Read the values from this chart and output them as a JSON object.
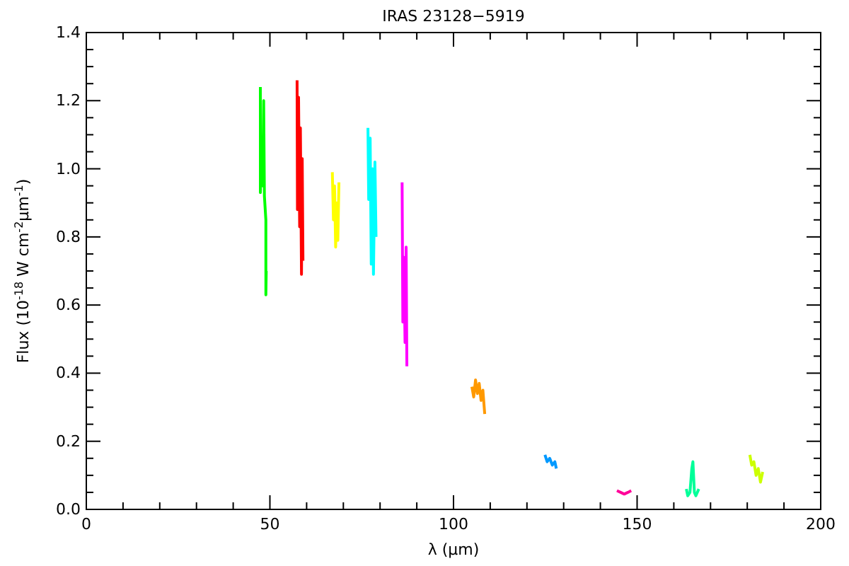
{
  "chart_data": {
    "type": "line",
    "title": "IRAS 23128−5919",
    "xlabel": "λ (μm)",
    "ylabel": "Flux (10$^{-18}$ W cm$^{-2}$μm$^{-1}$)",
    "xlim": [
      0,
      200
    ],
    "ylim": [
      0,
      1.4
    ],
    "xticks": [
      0,
      {
        "value": 10,
        "label": null
      },
      {
        "value": 20,
        "label": null
      },
      {
        "value": 30,
        "label": null
      },
      {
        "value": 40,
        "label": null
      },
      50,
      {
        "value": 60,
        "label": null
      },
      {
        "value": 70,
        "label": null
      },
      {
        "value": 80,
        "label": null
      },
      {
        "value": 90,
        "label": null
      },
      100,
      {
        "value": 110,
        "label": null
      },
      {
        "value": 120,
        "label": null
      },
      {
        "value": 130,
        "label": null
      },
      {
        "value": 140,
        "label": null
      },
      150,
      {
        "value": 160,
        "label": null
      },
      {
        "value": 170,
        "label": null
      },
      {
        "value": 180,
        "label": null
      },
      {
        "value": 190,
        "label": null
      },
      200
    ],
    "yticks": [
      {
        "value": 0,
        "label": "0.0"
      },
      {
        "value": 0.05,
        "label": null
      },
      {
        "value": 0.1,
        "label": null
      },
      {
        "value": 0.15,
        "label": null
      },
      0.2,
      {
        "value": 0.25,
        "label": null
      },
      {
        "value": 0.3,
        "label": null
      },
      {
        "value": 0.35,
        "label": null
      },
      0.4,
      {
        "value": 0.45,
        "label": null
      },
      {
        "value": 0.5,
        "label": null
      },
      {
        "value": 0.55,
        "label": null
      },
      0.6,
      {
        "value": 0.65,
        "label": null
      },
      {
        "value": 0.7,
        "label": null
      },
      {
        "value": 0.75,
        "label": null
      },
      0.8,
      {
        "value": 0.85,
        "label": null
      },
      {
        "value": 0.9,
        "label": null
      },
      {
        "value": 0.95,
        "label": null
      },
      {
        "value": 1,
        "label": "1.0"
      },
      {
        "value": 1.05,
        "label": null
      },
      {
        "value": 1.1,
        "label": null
      },
      {
        "value": 1.15,
        "label": null
      },
      1.2,
      {
        "value": 1.25,
        "label": null
      },
      {
        "value": 1.3,
        "label": null
      },
      {
        "value": 1.35,
        "label": null
      },
      1.4
    ],
    "grid": false,
    "marker": "none",
    "line_style": "solid",
    "series": [
      {
        "color": "#00ff00",
        "x": [
          47.4,
          47.4,
          47.6,
          48.0,
          48.3,
          48.5,
          48.9,
          48.9,
          49.0
        ],
        "values": [
          1.24,
          0.93,
          1.0,
          0.95,
          1.2,
          0.92,
          0.85,
          0.63,
          0.7
        ]
      },
      {
        "color": "#ff0000",
        "x": [
          57.4,
          57.5,
          57.8,
          58.1,
          58.3,
          58.6,
          58.8,
          59.0
        ],
        "values": [
          1.26,
          0.88,
          1.21,
          0.83,
          1.12,
          0.69,
          1.03,
          0.73
        ]
      },
      {
        "color": "#ffff00",
        "x": [
          67.0,
          67.3,
          67.6,
          67.9,
          68.2,
          68.5,
          68.8
        ],
        "values": [
          0.99,
          0.85,
          0.95,
          0.77,
          0.9,
          0.79,
          0.96
        ]
      },
      {
        "color": "#00ffff",
        "x": [
          76.7,
          76.9,
          77.3,
          77.6,
          77.9,
          78.2,
          78.6,
          78.9
        ],
        "values": [
          1.12,
          0.91,
          1.09,
          0.72,
          1.0,
          0.69,
          1.02,
          0.8
        ]
      },
      {
        "color": "#ff00ff",
        "x": [
          86.0,
          86.2,
          86.5,
          86.8,
          87.1,
          87.3
        ],
        "values": [
          0.96,
          0.55,
          0.74,
          0.49,
          0.77,
          0.42
        ]
      },
      {
        "color": "#ff9900",
        "x": [
          105.0,
          105.5,
          106,
          106.5,
          107,
          107.5,
          108,
          108.5
        ],
        "values": [
          0.36,
          0.33,
          0.38,
          0.34,
          0.37,
          0.32,
          0.35,
          0.28
        ]
      },
      {
        "color": "#0099ff",
        "x": [
          124.9,
          125.5,
          126.2,
          126.9,
          127.6,
          128.0
        ],
        "values": [
          0.16,
          0.14,
          0.15,
          0.13,
          0.14,
          0.12
        ]
      },
      {
        "color": "#ff0099",
        "x": [
          144.5,
          145.5,
          146.5,
          147.5,
          148.4
        ],
        "values": [
          0.055,
          0.05,
          0.045,
          0.05,
          0.055
        ]
      },
      {
        "color": "#00ff99",
        "x": [
          163.4,
          163.8,
          164.4,
          164.9,
          165.2,
          165.6,
          166.0,
          166.8
        ],
        "values": [
          0.06,
          0.04,
          0.05,
          0.12,
          0.14,
          0.05,
          0.04,
          0.06
        ]
      },
      {
        "color": "#ccff00",
        "x": [
          180.7,
          181.2,
          181.8,
          182.4,
          183.0,
          183.6,
          184.2
        ],
        "values": [
          0.16,
          0.13,
          0.14,
          0.1,
          0.12,
          0.08,
          0.11
        ]
      }
    ]
  }
}
